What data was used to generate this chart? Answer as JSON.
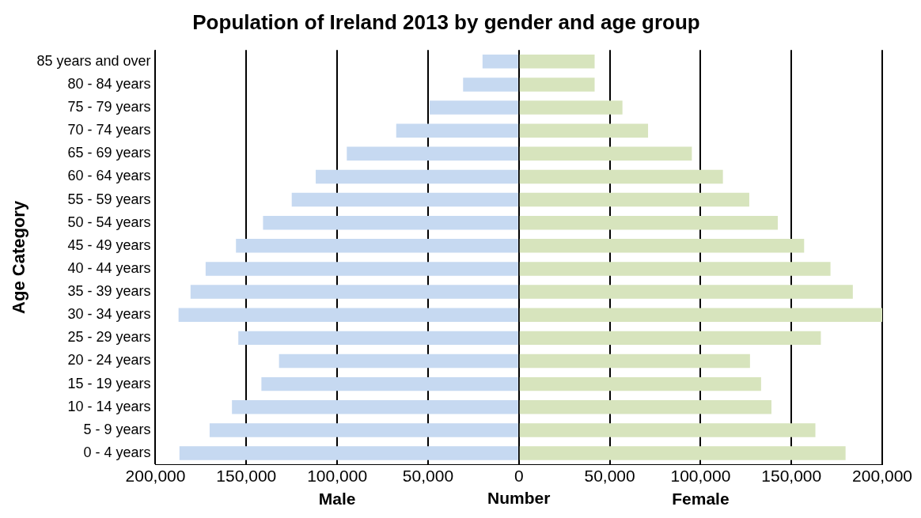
{
  "chart_data": {
    "type": "bar",
    "orientation": "horizontal",
    "stacked": true,
    "title": "Population of Ireland 2013 by gender and age group",
    "xlabel": "Number",
    "ylabel": "Age Category",
    "categories": [
      "85 years and over",
      "80 - 84 years",
      "75 - 79 years",
      "70 - 74 years",
      "65 - 69 years",
      "60 - 64 years",
      "55 - 59 years",
      "50 - 54 years",
      "45 - 49 years",
      "40 - 44 years",
      "35 - 39 years",
      "30 - 34 years",
      "25 - 29 years",
      "20 - 24 years",
      "15 - 19 years",
      "10 - 14 years",
      "5 - 9 years",
      "0 - 4 years"
    ],
    "series": [
      {
        "color": "#c6d9f1",
        "values": [
          -20000,
          -30700,
          -49100,
          -67500,
          -94700,
          -111800,
          -125000,
          -140800,
          -155700,
          -172400,
          -180700,
          -187300,
          -154400,
          -132000,
          -141700,
          -157900,
          -170200,
          -186800
        ]
      },
      {
        "color": "#d7e4bd",
        "values": [
          41700,
          41700,
          57000,
          71100,
          95200,
          112300,
          126800,
          142500,
          157000,
          171500,
          183800,
          200000,
          166200,
          127200,
          133300,
          139000,
          163200,
          179800
        ]
      }
    ],
    "xlim": [
      -200000,
      200000
    ],
    "xticks": [
      {
        "value": -200000,
        "label": "200,000"
      },
      {
        "value": -150000,
        "label": "150,000"
      },
      {
        "value": -100000,
        "label": "100,000"
      },
      {
        "value": -50000,
        "label": "50,000"
      },
      {
        "value": 0,
        "label": "0"
      },
      {
        "value": 50000,
        "label": "50,000"
      },
      {
        "value": 100000,
        "label": "100,000"
      },
      {
        "value": 150000,
        "label": "150,000"
      },
      {
        "value": 200000,
        "label": "200,000"
      }
    ],
    "grid": "x",
    "legend": false,
    "annotations": [
      "Male",
      "Female"
    ]
  }
}
